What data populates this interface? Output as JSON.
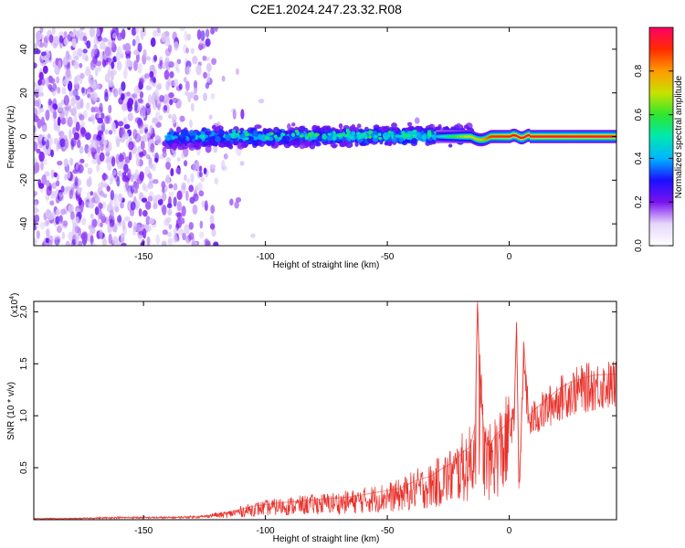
{
  "title": "C2E1.2024.247.23.32.R08",
  "chart_data": [
    {
      "type": "heatmap",
      "xlabel": "Height of straight line (km)",
      "ylabel": "Frequency (Hz)",
      "xlim": [
        -195,
        44
      ],
      "ylim": [
        -50,
        50
      ],
      "xticks": [
        -150,
        -100,
        -50,
        0
      ],
      "yticks": [
        -40,
        -20,
        0,
        20,
        40
      ],
      "colorbar": {
        "label": "Normalized spectral amplitude",
        "range": [
          0,
          1
        ],
        "ticks": [
          "0.0",
          "0.2",
          "0.4",
          "0.6",
          "0.8"
        ],
        "colormap": [
          "#ffffff",
          "#e6d6fb",
          "#7a12f0",
          "#1a10ff",
          "#00b4ff",
          "#00e8b0",
          "#2ee62e",
          "#c8e200",
          "#ff9a00",
          "#ff2a00",
          "#ff0066"
        ]
      },
      "description_regions": [
        {
          "x_range": [
            -195,
            -120
          ],
          "freq_spread": [
            -50,
            50
          ],
          "amplitude": 0.1
        },
        {
          "x_range": [
            -140,
            -15
          ],
          "freq_spread": [
            -9,
            8
          ],
          "amplitude": 0.35
        },
        {
          "x_range": [
            -30,
            44
          ],
          "freq_spread": [
            -1,
            1
          ],
          "amplitude": 0.95
        }
      ]
    },
    {
      "type": "line",
      "xlabel": "Height of straight line (km)",
      "ylabel": "SNR (10 * v/v)",
      "scale_label": "(x10",
      "scale_exponent": "4",
      "scale_suffix": ")",
      "xlim": [
        -195,
        44
      ],
      "ylim": [
        0,
        2.1
      ],
      "xticks": [
        -150,
        -100,
        -50,
        0
      ],
      "yticks": [
        "0.5",
        "1.0",
        "1.5",
        "2.0"
      ],
      "ytick_values": [
        0.5,
        1.0,
        1.5,
        2.0
      ],
      "color": "#e8302a",
      "x": [
        -195,
        -180,
        -160,
        -140,
        -125,
        -115,
        -105,
        -95,
        -85,
        -75,
        -65,
        -55,
        -45,
        -38,
        -32,
        -27,
        -23,
        -19,
        -16,
        -14,
        -13,
        -12,
        -10,
        -8,
        -6,
        -4,
        -2,
        0,
        2,
        3,
        4,
        5,
        6,
        8,
        10,
        15,
        20,
        25,
        30,
        35,
        40,
        44
      ],
      "y": [
        0.01,
        0.01,
        0.02,
        0.02,
        0.03,
        0.07,
        0.13,
        0.16,
        0.18,
        0.2,
        0.22,
        0.26,
        0.3,
        0.38,
        0.42,
        0.5,
        0.55,
        0.65,
        0.7,
        0.9,
        2.1,
        1.3,
        0.75,
        0.7,
        0.8,
        0.85,
        0.9,
        0.95,
        1.0,
        1.9,
        0.3,
        0.9,
        1.7,
        1.0,
        1.05,
        1.15,
        1.25,
        1.32,
        1.36,
        1.39,
        1.4,
        1.4
      ],
      "peaks": [
        {
          "x": -13,
          "y": 2.1
        },
        {
          "x": 3,
          "y": 1.9
        }
      ]
    }
  ]
}
